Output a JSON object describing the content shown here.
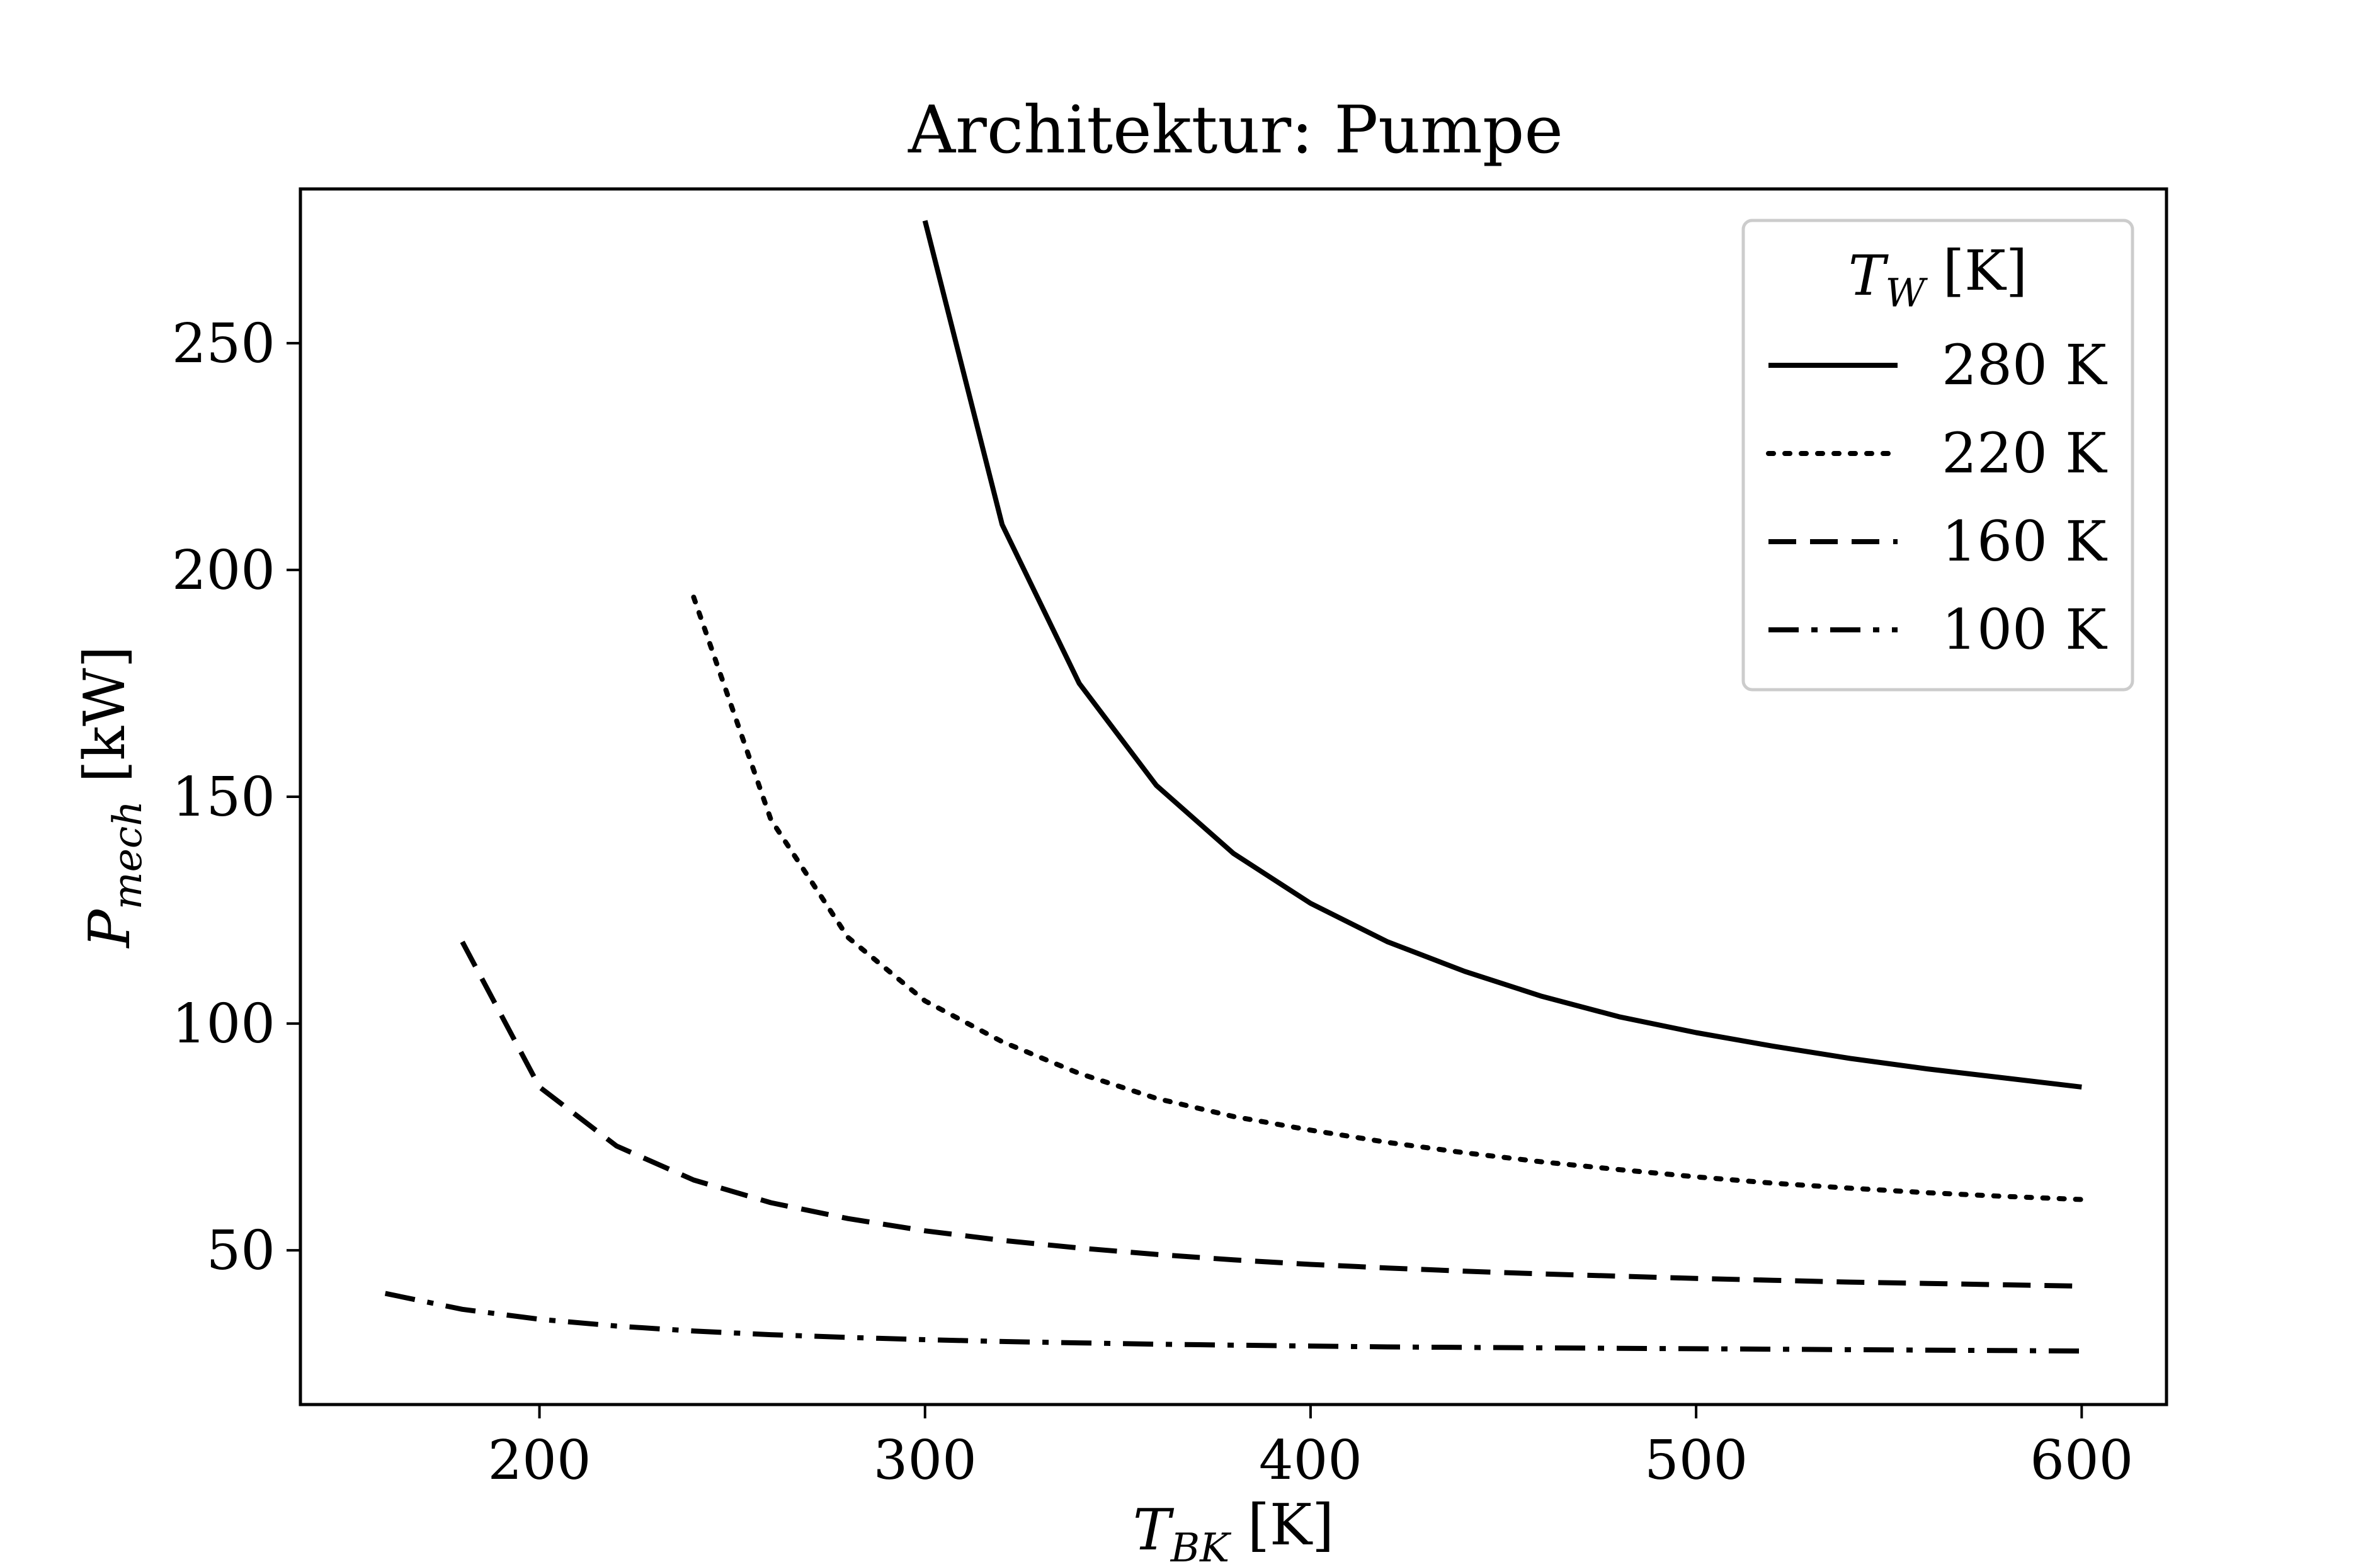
{
  "chart_data": {
    "type": "line",
    "title": "Architektur: Pumpe",
    "xlabel": {
      "main": "T",
      "sub": "BK",
      "unit": "[K]"
    },
    "ylabel": {
      "main": "P",
      "sub": "mech",
      "unit": "[kW]"
    },
    "xlim": [
      138,
      622
    ],
    "ylim": [
      16,
      284
    ],
    "x_ticks": [
      200,
      300,
      400,
      500,
      600
    ],
    "y_ticks": [
      50,
      100,
      150,
      200,
      250
    ],
    "grid": false,
    "legend": {
      "title": {
        "main": "T",
        "sub": "W",
        "unit": "[K]"
      },
      "position": "top-right"
    },
    "series": [
      {
        "name": "280 K",
        "style": "solid",
        "x": [
          300,
          320,
          340,
          360,
          380,
          400,
          420,
          440,
          460,
          480,
          500,
          520,
          540,
          560,
          580,
          600
        ],
        "y": [
          277,
          210,
          175,
          152.5,
          137.5,
          126.5,
          118,
          111.5,
          106,
          101.5,
          98,
          95,
          92.3,
          90,
          88,
          86
        ]
      },
      {
        "name": "220 K",
        "style": "dotted",
        "x": [
          240,
          260,
          280,
          300,
          320,
          340,
          360,
          380,
          400,
          420,
          440,
          460,
          480,
          500,
          520,
          540,
          560,
          580,
          600
        ],
        "y": [
          194,
          145,
          119,
          105,
          96,
          89,
          83.5,
          79.5,
          76.5,
          73.8,
          71.5,
          69.5,
          67.8,
          66.2,
          64.8,
          63.7,
          62.7,
          61.9,
          61.2
        ]
      },
      {
        "name": "160 K",
        "style": "dashed",
        "x": [
          180,
          200,
          220,
          240,
          260,
          280,
          300,
          320,
          340,
          360,
          380,
          400,
          420,
          440,
          460,
          480,
          500,
          520,
          540,
          560,
          580,
          600
        ],
        "y": [
          118,
          86,
          73,
          65.5,
          60.5,
          57,
          54.3,
          52.2,
          50.5,
          49.1,
          47.9,
          46.9,
          46.1,
          45.4,
          44.8,
          44.3,
          43.8,
          43.4,
          43,
          42.7,
          42.4,
          42.1
        ]
      },
      {
        "name": "100 K",
        "style": "dashdot",
        "x": [
          160,
          180,
          200,
          220,
          240,
          260,
          280,
          300,
          320,
          340,
          360,
          380,
          400,
          420,
          440,
          460,
          480,
          500,
          520,
          540,
          560,
          580,
          600
        ],
        "y": [
          40.5,
          37,
          34.8,
          33.3,
          32.2,
          31.4,
          30.8,
          30.3,
          29.9,
          29.6,
          29.3,
          29.1,
          28.9,
          28.7,
          28.6,
          28.5,
          28.4,
          28.3,
          28.2,
          28.1,
          28.0,
          27.9,
          27.8
        ]
      }
    ]
  }
}
